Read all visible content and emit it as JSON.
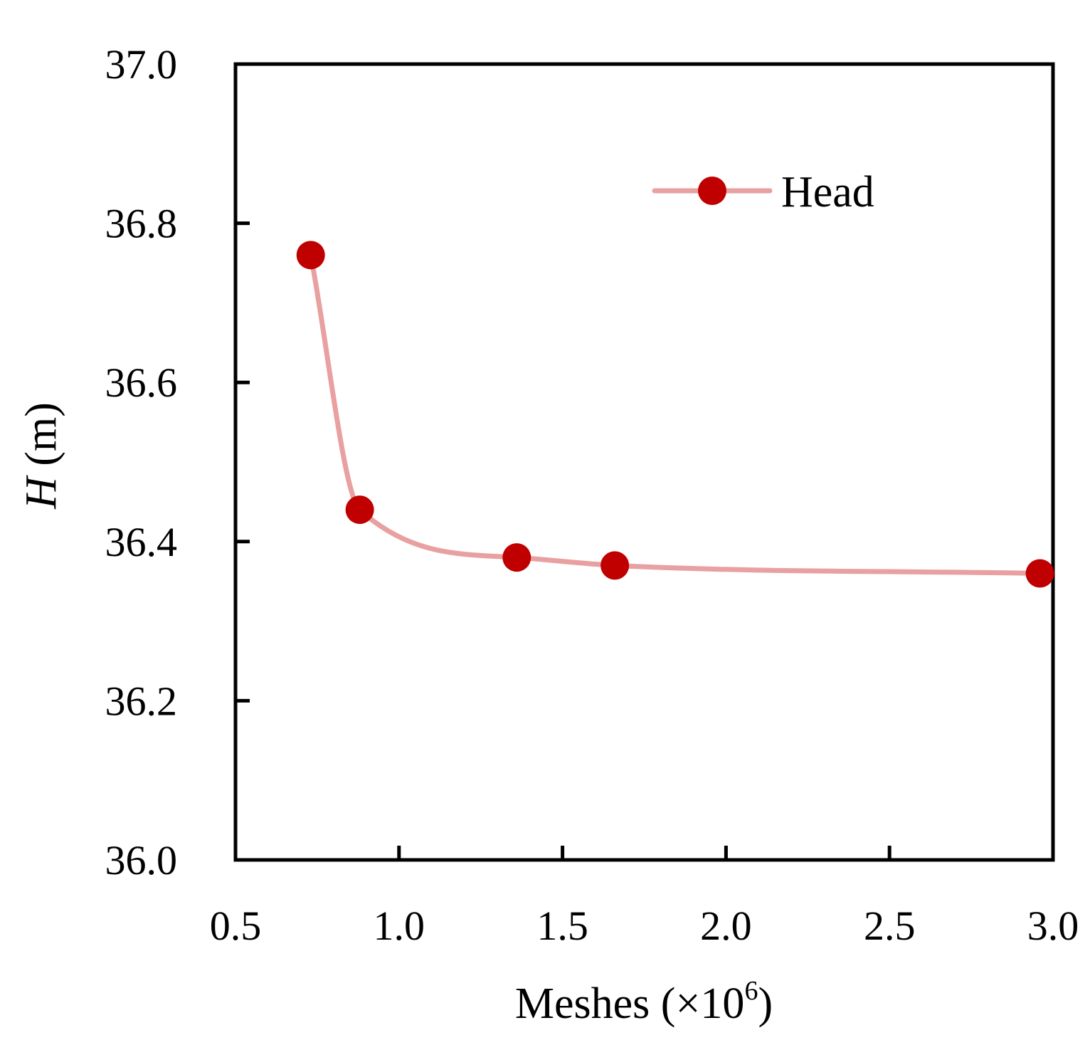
{
  "chart_data": {
    "type": "line",
    "x_ticks": [
      "0.5",
      "1.0",
      "1.5",
      "2.0",
      "2.5",
      "3.0"
    ],
    "y_ticks": [
      "36.0",
      "36.2",
      "36.4",
      "36.6",
      "36.8",
      "37.0"
    ],
    "xlim": [
      0.5,
      3.0
    ],
    "ylim": [
      36.0,
      37.0
    ],
    "xlabel_main": "Meshes (",
    "xlabel_multiplier": "×10",
    "xlabel_exp": "6",
    "xlabel_close": ")",
    "ylabel_var": "H",
    "ylabel_unit": " (m)",
    "legend_position": "top-right",
    "grid": false,
    "smooth": true,
    "series": [
      {
        "name": "Head",
        "line_color": "#e8a0a0",
        "marker_color": "#c00000",
        "x": [
          0.73,
          0.88,
          1.36,
          1.66,
          2.96
        ],
        "y": [
          36.76,
          36.44,
          36.38,
          36.37,
          36.36
        ]
      }
    ]
  }
}
